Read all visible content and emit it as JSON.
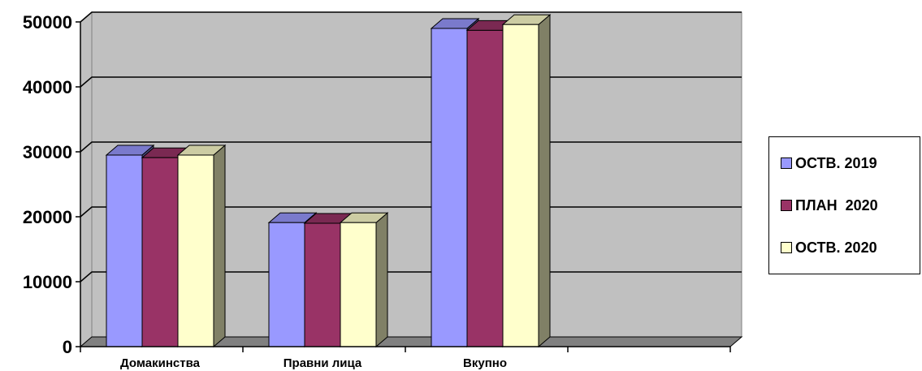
{
  "chart_data": {
    "type": "bar",
    "categories": [
      "Домакинства",
      "Правни лица",
      "Вкупно",
      ""
    ],
    "series": [
      {
        "name": "ОСТВ. 2019",
        "values": [
          29500,
          19100,
          49000,
          null
        ],
        "color": "#9999FF"
      },
      {
        "name": "ПЛАН  2020",
        "values": [
          29100,
          19000,
          48700,
          null
        ],
        "color": "#993366"
      },
      {
        "name": "ОСТВ. 2020",
        "values": [
          29500,
          19100,
          49600,
          null
        ],
        "color": "#FFFFCC"
      }
    ],
    "yticks": [
      "0",
      "10000",
      "20000",
      "30000",
      "40000",
      "50000"
    ],
    "ylim": [
      0,
      50000
    ],
    "grid": true,
    "legend_position": "right",
    "wall_color": "#C0C0C0",
    "floor_color": "#808080",
    "title": "",
    "xlabel": "",
    "ylabel": ""
  }
}
